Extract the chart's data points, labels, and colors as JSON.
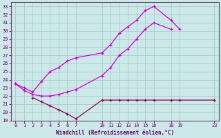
{
  "xlabel": "Windchill (Refroidissement éolien,°C)",
  "bg_color": "#cce8e8",
  "line_color_bright": "#cc00cc",
  "line_color_dark": "#880055",
  "grid_color": "#aacccc",
  "xlim": [
    -0.5,
    23.5
  ],
  "ylim": [
    19,
    33.5
  ],
  "xtick_labels": [
    "0",
    "1",
    "2",
    "3",
    "4",
    "5",
    "6",
    "7",
    "10",
    "11",
    "12",
    "13",
    "14",
    "15",
    "16",
    "18",
    "19",
    "23"
  ],
  "xtick_positions": [
    0,
    1,
    2,
    3,
    4,
    5,
    6,
    7,
    10,
    11,
    12,
    13,
    14,
    15,
    16,
    18,
    19,
    23
  ],
  "ytick_positions": [
    19,
    20,
    21,
    22,
    23,
    24,
    25,
    26,
    27,
    28,
    29,
    30,
    31,
    32,
    33
  ],
  "line1_x": [
    0,
    1,
    2,
    3,
    4,
    5,
    6,
    7,
    10,
    11,
    12,
    13,
    14,
    15,
    16,
    18,
    19
  ],
  "line1_y": [
    23.5,
    23.0,
    22.5,
    23.8,
    25.0,
    25.5,
    26.3,
    26.7,
    27.3,
    28.3,
    29.7,
    30.5,
    31.3,
    32.5,
    33.0,
    31.3,
    30.2
  ],
  "line2_x": [
    0,
    1,
    2,
    3,
    4,
    5,
    6,
    7,
    10,
    11,
    12,
    13,
    14,
    15,
    16,
    18
  ],
  "line2_y": [
    23.5,
    22.7,
    22.2,
    22.0,
    22.0,
    22.2,
    22.5,
    22.8,
    24.5,
    25.5,
    27.0,
    27.8,
    29.0,
    30.2,
    31.0,
    30.2
  ],
  "line3_x": [
    2,
    3,
    4,
    5,
    6,
    7,
    10,
    11,
    12,
    13,
    14,
    15,
    16,
    18,
    19,
    23
  ],
  "line3_y": [
    21.8,
    21.3,
    20.8,
    20.3,
    19.8,
    19.2,
    21.5,
    21.5,
    21.5,
    21.5,
    21.5,
    21.5,
    21.5,
    21.5,
    21.5,
    21.5
  ]
}
